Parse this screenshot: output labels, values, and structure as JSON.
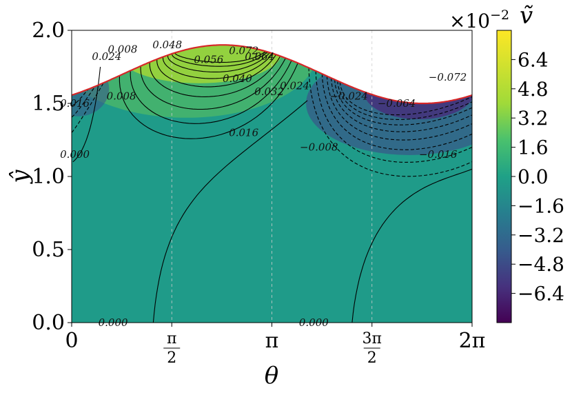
{
  "chart_data": {
    "type": "heatmap",
    "title": "",
    "xlabel": "θ",
    "ylabel": "ŷ",
    "xlim": [
      0,
      6.2832
    ],
    "ylim": [
      0,
      2.0
    ],
    "x_ticks": [
      {
        "value": 0,
        "label": "0"
      },
      {
        "value": 1.5708,
        "num": "π",
        "den": "2"
      },
      {
        "value": 3.1416,
        "label": "π"
      },
      {
        "value": 4.7124,
        "num": "3π",
        "den": "2"
      },
      {
        "value": 6.2832,
        "label": "2π"
      }
    ],
    "y_ticks": [
      {
        "value": 0.0,
        "label": "0.0"
      },
      {
        "value": 0.5,
        "label": "0.5"
      },
      {
        "value": 1.0,
        "label": "1.0"
      },
      {
        "value": 1.5,
        "label": "1.5"
      },
      {
        "value": 2.0,
        "label": "2.0"
      }
    ],
    "boundary": {
      "mean": 1.7,
      "amplitude": 0.2,
      "phase": -0.8,
      "color": "#d62728"
    },
    "contour_labels": [
      {
        "text": "0.000",
        "x": 0.65,
        "y": 0.0
      },
      {
        "text": "0.000",
        "x": 3.8,
        "y": 0.0
      },
      {
        "text": "0.000",
        "x": 0.05,
        "y": 1.15
      },
      {
        "text": "0.008",
        "x": 0.78,
        "y": 1.55
      },
      {
        "text": "0.016",
        "x": 0.05,
        "y": 1.5
      },
      {
        "text": "0.016",
        "x": 2.7,
        "y": 1.3
      },
      {
        "text": "0.024",
        "x": 0.55,
        "y": 1.82
      },
      {
        "text": "0.008",
        "x": 0.8,
        "y": 1.87
      },
      {
        "text": "0.048",
        "x": 1.5,
        "y": 1.9
      },
      {
        "text": "0.056",
        "x": 2.15,
        "y": 1.8
      },
      {
        "text": "0.072",
        "x": 2.7,
        "y": 1.86
      },
      {
        "text": "0.064",
        "x": 2.95,
        "y": 1.82
      },
      {
        "text": "0.040",
        "x": 2.6,
        "y": 1.67
      },
      {
        "text": "0.032",
        "x": 3.1,
        "y": 1.58
      },
      {
        "text": "0.024",
        "x": 3.5,
        "y": 1.62
      },
      {
        "text": "−0.024",
        "x": 4.35,
        "y": 1.55
      },
      {
        "text": "−0.008",
        "x": 3.88,
        "y": 1.2
      },
      {
        "text": "−0.064",
        "x": 5.1,
        "y": 1.5
      },
      {
        "text": "−0.016",
        "x": 5.75,
        "y": 1.15
      },
      {
        "text": "−0.072",
        "x": 5.9,
        "y": 1.68
      }
    ],
    "colorbar": {
      "label": "ṽ",
      "scale_text": "×10",
      "scale_exp": "−2",
      "range": [
        -8,
        8
      ],
      "colormap": "viridis",
      "ticks": [
        "6.4",
        "4.8",
        "3.2",
        "1.6",
        "0.0",
        "−1.6",
        "−3.2",
        "−4.8",
        "−6.4"
      ],
      "tick_values": [
        6.4,
        4.8,
        3.2,
        1.6,
        0.0,
        -1.6,
        -3.2,
        -4.8,
        -6.4
      ]
    }
  }
}
